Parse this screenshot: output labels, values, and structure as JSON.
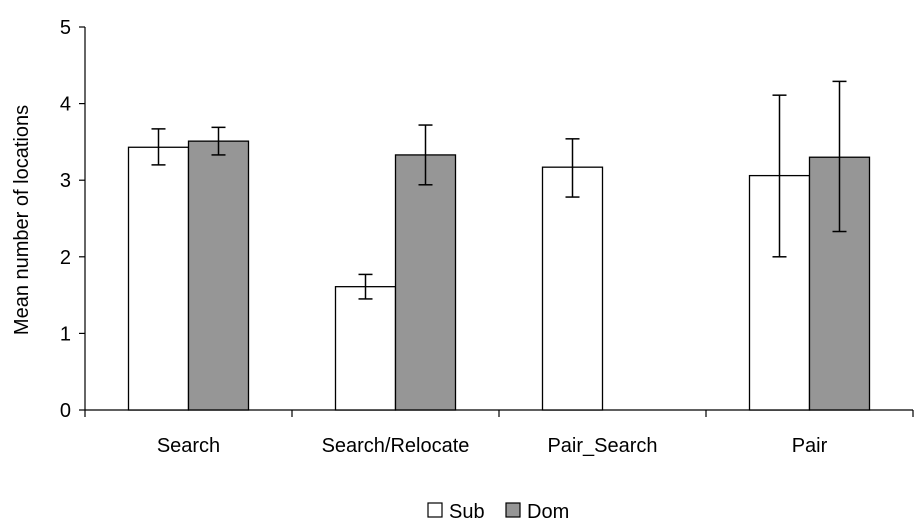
{
  "chart_data": {
    "type": "bar",
    "title": "",
    "xlabel": "",
    "ylabel": "Mean number of locations",
    "ylim": [
      0,
      5
    ],
    "yticks": [
      "0",
      "1",
      "2",
      "3",
      "4",
      "5"
    ],
    "categories": [
      "Search",
      "Search/Relocate",
      "Pair_Search",
      "Pair"
    ],
    "grid": false,
    "legend_position": "bottom",
    "series": [
      {
        "name": "Sub",
        "color": "#ffffff",
        "values": [
          3.43,
          1.61,
          3.17,
          3.06
        ],
        "error": [
          [
            3.2,
            3.67
          ],
          [
            1.45,
            1.77
          ],
          [
            2.78,
            3.54
          ],
          [
            2.0,
            4.11
          ]
        ]
      },
      {
        "name": "Dom",
        "color": "#969696",
        "values": [
          3.51,
          3.33,
          null,
          3.3
        ],
        "error": [
          [
            3.33,
            3.69
          ],
          [
            2.94,
            3.72
          ],
          null,
          [
            2.33,
            4.29
          ]
        ]
      }
    ]
  }
}
